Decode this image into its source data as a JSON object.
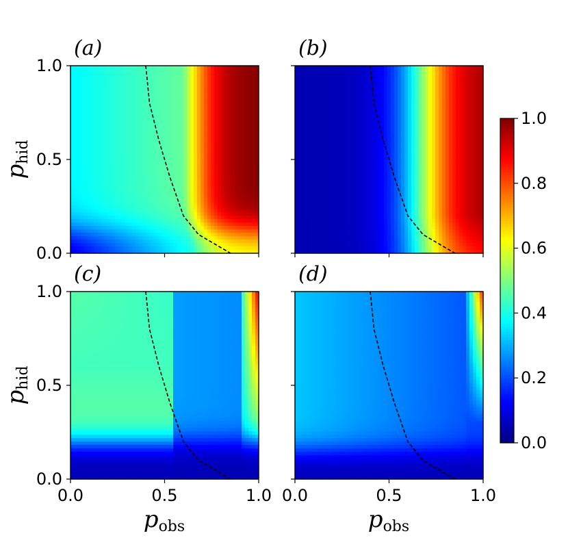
{
  "chart_data": {
    "type": "heatmap",
    "colormap": "jet",
    "panels": [
      {
        "label": "(a)",
        "description": "smooth diagonal ramp; high values at large p_obs"
      },
      {
        "label": "(b)",
        "description": "sharp transition with p_obs; low values for p_obs < 0.4"
      },
      {
        "label": "(c)",
        "description": "medium values at low p_obs, low mid band, high at p_obs near 1"
      },
      {
        "label": "(d)",
        "description": "low-medium values, high only near p_obs ≈ 1 for large p_hid"
      }
    ],
    "xlabel": {
      "main": "p",
      "sub": "obs"
    },
    "ylabel": {
      "main": "p",
      "sub": "hid"
    },
    "xlim": [
      0,
      1
    ],
    "ylim": [
      0,
      1
    ],
    "x_ticks": [
      "0.0",
      "0.5",
      "1.0"
    ],
    "y_ticks": [
      "0.0",
      "0.5",
      "1.0"
    ],
    "boundary_line": {
      "style": "dashed",
      "color": "#000000",
      "points": [
        [
          0.4,
          1.0
        ],
        [
          0.42,
          0.8
        ],
        [
          0.47,
          0.6
        ],
        [
          0.53,
          0.4
        ],
        [
          0.6,
          0.2
        ],
        [
          0.68,
          0.1
        ],
        [
          0.85,
          0.0
        ]
      ]
    },
    "colorbar": {
      "range": [
        0,
        1
      ],
      "ticks": [
        "0.0",
        "0.2",
        "0.4",
        "0.6",
        "0.8",
        "1.0"
      ]
    }
  }
}
